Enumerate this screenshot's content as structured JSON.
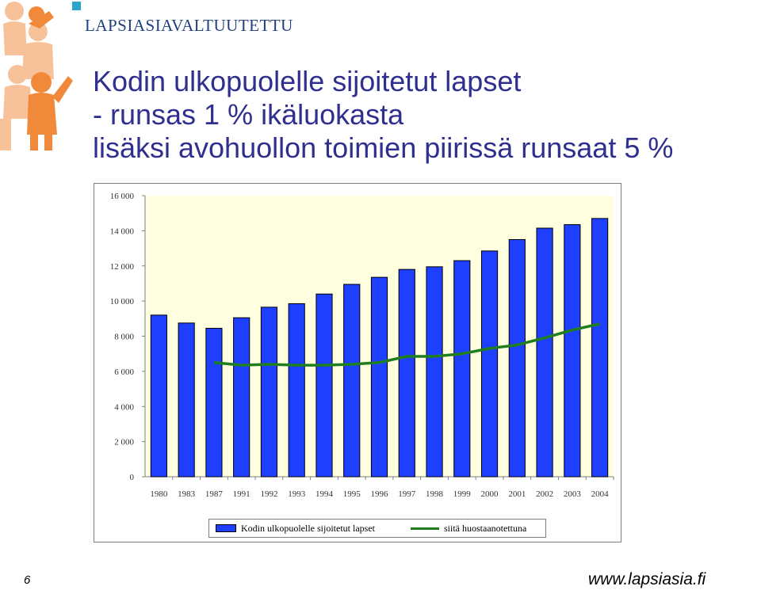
{
  "brand": "LAPSIASIAVALTUUTETTU",
  "title_lines": [
    "Kodin ulkopuolelle sijoitetut lapset",
    "- runsas 1 %  ikäluokasta",
    "lisäksi  avohuollon toimien piirissä runsaat 5 %"
  ],
  "chart_data": {
    "type": "bar",
    "categories": [
      "1980",
      "1983",
      "1987",
      "1991",
      "1992",
      "1993",
      "1994",
      "1995",
      "1996",
      "1997",
      "1998",
      "1999",
      "2000",
      "2001",
      "2002",
      "2003",
      "2004"
    ],
    "series": [
      {
        "name": "Kodin ulkopuolelle sijoitetut lapset",
        "type": "bar",
        "color": "#1f3fff",
        "values": [
          9200,
          8750,
          8450,
          9050,
          9650,
          9850,
          10400,
          10950,
          11350,
          11800,
          11950,
          12300,
          12850,
          13500,
          14150,
          14350,
          14700
        ]
      },
      {
        "name": "siitä huostaanotettuna",
        "type": "line",
        "color": "#1f7f1f",
        "values": [
          null,
          null,
          6500,
          6350,
          6400,
          6350,
          6350,
          6400,
          6500,
          6850,
          6850,
          7000,
          7300,
          7500,
          7900,
          8350,
          8700
        ]
      }
    ],
    "yticks": [
      "0",
      "2 000",
      "4 000",
      "6 000",
      "8 000",
      "10 000",
      "12 000",
      "14 000",
      "16 000"
    ],
    "ylim": [
      0,
      16000
    ],
    "plot_background": "#ffffe0",
    "grid": false,
    "legend_position": "bottom"
  },
  "footer": {
    "page_number": "6",
    "site": "www.lapsiasia.fi"
  },
  "colors": {
    "title": "#2f2f8f",
    "logo_orange": "#f08a3a",
    "logo_light": "#f7c29a",
    "brand_square": "#2aa4c8"
  }
}
